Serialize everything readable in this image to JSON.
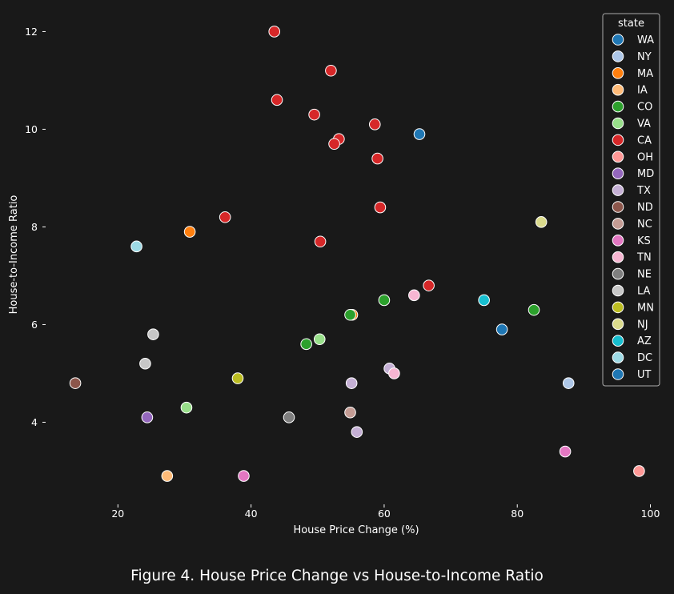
{
  "caption": "Figure 4. House Price Change vs House-to-Income Ratio",
  "chart_data": {
    "type": "scatter",
    "xlabel": "House Price Change (%)",
    "ylabel": "House-to-Income Ratio",
    "xlim": [
      9.5,
      101.5
    ],
    "ylim": [
      2.45,
      12.45
    ],
    "xticks": [
      20,
      40,
      60,
      80,
      100
    ],
    "yticks": [
      4,
      6,
      8,
      10,
      12
    ],
    "grid": false,
    "legend_title": "state",
    "legend_position": "top-right",
    "background": "#191919",
    "states": [
      {
        "name": "WA",
        "color": "#1f77b4"
      },
      {
        "name": "NY",
        "color": "#aec7e8"
      },
      {
        "name": "MA",
        "color": "#ff7f0e"
      },
      {
        "name": "IA",
        "color": "#ffbb78"
      },
      {
        "name": "CO",
        "color": "#2ca02c"
      },
      {
        "name": "VA",
        "color": "#98df8a"
      },
      {
        "name": "CA",
        "color": "#d62728"
      },
      {
        "name": "OH",
        "color": "#ff9896"
      },
      {
        "name": "MD",
        "color": "#9467bd"
      },
      {
        "name": "TX",
        "color": "#c5b0d5"
      },
      {
        "name": "ND",
        "color": "#8c564b"
      },
      {
        "name": "NC",
        "color": "#c49c94"
      },
      {
        "name": "KS",
        "color": "#e377c2"
      },
      {
        "name": "TN",
        "color": "#f7b6d2"
      },
      {
        "name": "NE",
        "color": "#7f7f7f"
      },
      {
        "name": "LA",
        "color": "#c7c7c7"
      },
      {
        "name": "MN",
        "color": "#bcbd22"
      },
      {
        "name": "NJ",
        "color": "#dbdb8d"
      },
      {
        "name": "AZ",
        "color": "#17becf"
      },
      {
        "name": "DC",
        "color": "#9edae5"
      },
      {
        "name": "UT",
        "color": "#1f77b4"
      }
    ],
    "points": [
      {
        "x": 65.3,
        "y": 9.9,
        "state": "WA"
      },
      {
        "x": 87.7,
        "y": 4.8,
        "state": "NY"
      },
      {
        "x": 30.8,
        "y": 7.9,
        "state": "MA"
      },
      {
        "x": 55.2,
        "y": 6.2,
        "state": "MA"
      },
      {
        "x": 27.4,
        "y": 2.9,
        "state": "IA"
      },
      {
        "x": 54.9,
        "y": 6.2,
        "state": "CO"
      },
      {
        "x": 48.3,
        "y": 5.6,
        "state": "CO"
      },
      {
        "x": 60.0,
        "y": 6.5,
        "state": "CO"
      },
      {
        "x": 82.5,
        "y": 6.3,
        "state": "CO"
      },
      {
        "x": 50.3,
        "y": 5.7,
        "state": "VA"
      },
      {
        "x": 30.3,
        "y": 4.3,
        "state": "VA"
      },
      {
        "x": 43.5,
        "y": 12.0,
        "state": "CA"
      },
      {
        "x": 52.0,
        "y": 11.2,
        "state": "CA"
      },
      {
        "x": 43.9,
        "y": 10.6,
        "state": "CA"
      },
      {
        "x": 49.5,
        "y": 10.3,
        "state": "CA"
      },
      {
        "x": 58.6,
        "y": 10.1,
        "state": "CA"
      },
      {
        "x": 53.2,
        "y": 9.8,
        "state": "CA"
      },
      {
        "x": 52.5,
        "y": 9.7,
        "state": "CA"
      },
      {
        "x": 59.0,
        "y": 9.4,
        "state": "CA"
      },
      {
        "x": 59.4,
        "y": 8.4,
        "state": "CA"
      },
      {
        "x": 36.1,
        "y": 8.2,
        "state": "CA"
      },
      {
        "x": 50.4,
        "y": 7.7,
        "state": "CA"
      },
      {
        "x": 66.7,
        "y": 6.8,
        "state": "CA"
      },
      {
        "x": 98.3,
        "y": 3.0,
        "state": "OH"
      },
      {
        "x": 24.4,
        "y": 4.1,
        "state": "MD"
      },
      {
        "x": 60.8,
        "y": 5.1,
        "state": "TX"
      },
      {
        "x": 55.1,
        "y": 4.8,
        "state": "TX"
      },
      {
        "x": 55.9,
        "y": 3.8,
        "state": "TX"
      },
      {
        "x": 13.6,
        "y": 4.8,
        "state": "ND"
      },
      {
        "x": 54.9,
        "y": 4.2,
        "state": "NC"
      },
      {
        "x": 87.2,
        "y": 3.4,
        "state": "KS"
      },
      {
        "x": 38.9,
        "y": 2.9,
        "state": "KS"
      },
      {
        "x": 64.5,
        "y": 6.6,
        "state": "TN"
      },
      {
        "x": 61.5,
        "y": 5.0,
        "state": "TN"
      },
      {
        "x": 45.7,
        "y": 4.1,
        "state": "NE"
      },
      {
        "x": 25.3,
        "y": 5.8,
        "state": "LA"
      },
      {
        "x": 24.1,
        "y": 5.2,
        "state": "LA"
      },
      {
        "x": 38.0,
        "y": 4.9,
        "state": "MN"
      },
      {
        "x": 83.6,
        "y": 8.1,
        "state": "NJ"
      },
      {
        "x": 75.0,
        "y": 6.5,
        "state": "AZ"
      },
      {
        "x": 22.8,
        "y": 7.6,
        "state": "DC"
      },
      {
        "x": 77.7,
        "y": 5.9,
        "state": "UT"
      }
    ]
  }
}
